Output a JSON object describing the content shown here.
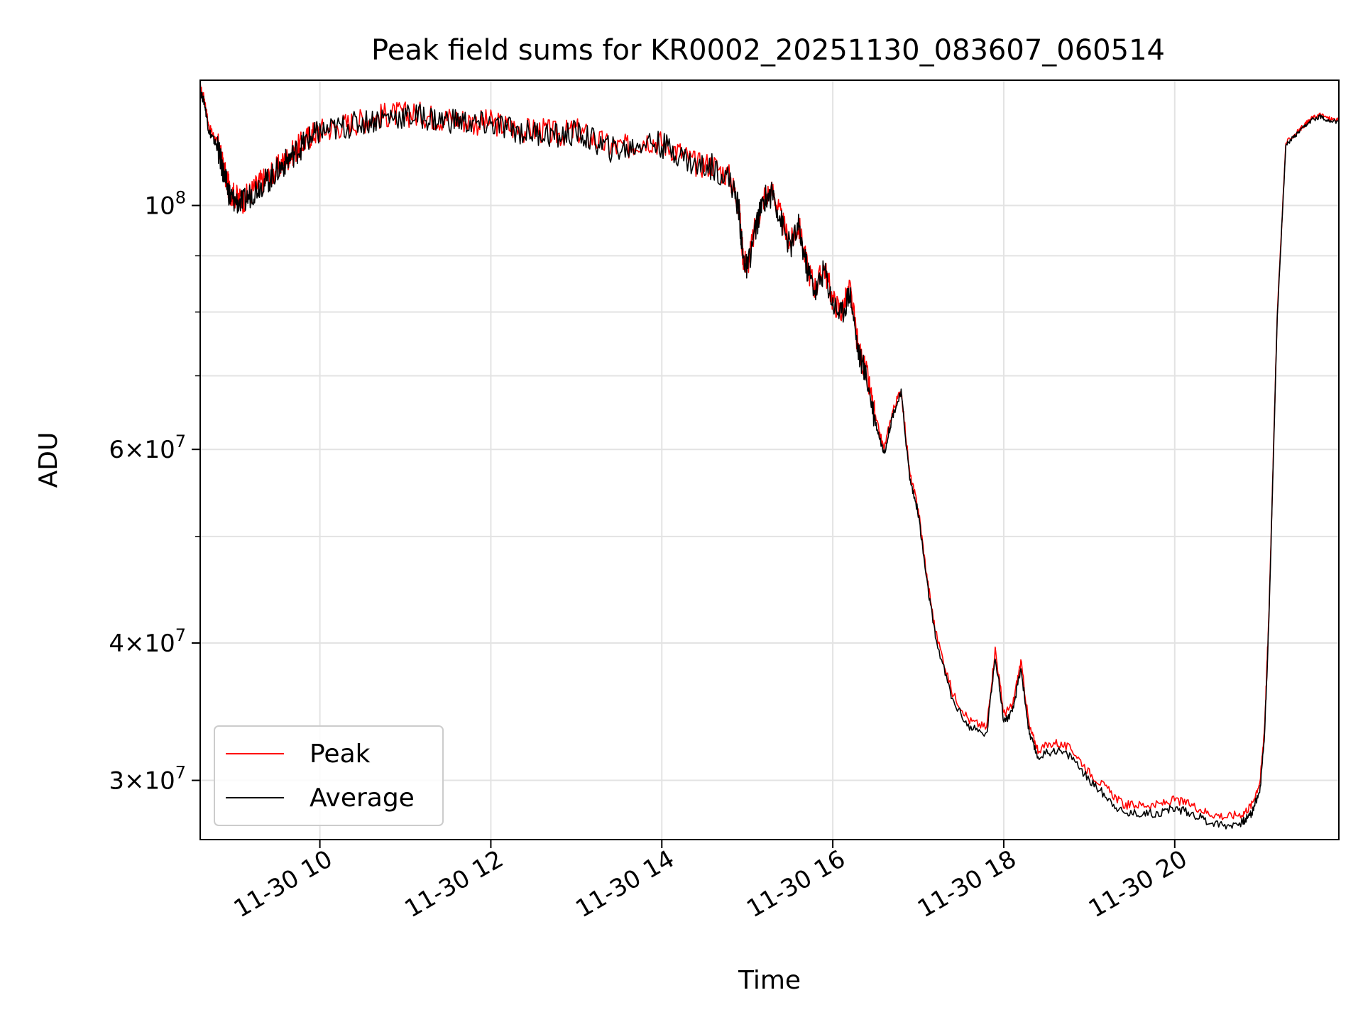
{
  "chart_data": {
    "type": "line",
    "title": "Peak field sums for KR0002_20251130_083607_060514",
    "xlabel": "Time",
    "ylabel": "ADU",
    "x_unit": "hours",
    "xlim": [
      8.6,
      21.92
    ],
    "ylim": [
      26500000,
      130000000
    ],
    "y_scale": "log",
    "grid": true,
    "legend_position": "lower-left",
    "x_ticks": [
      {
        "value": 10,
        "label": "11-30 10"
      },
      {
        "value": 12,
        "label": "11-30 12"
      },
      {
        "value": 14,
        "label": "11-30 14"
      },
      {
        "value": 16,
        "label": "11-30 16"
      },
      {
        "value": 18,
        "label": "11-30 18"
      },
      {
        "value": 20,
        "label": "11-30 20"
      }
    ],
    "y_major_ticks": [
      {
        "value": 30000000,
        "mantissa": "3",
        "exponent": "7"
      },
      {
        "value": 40000000,
        "mantissa": "4",
        "exponent": "7"
      },
      {
        "value": 60000000,
        "mantissa": "6",
        "exponent": "7"
      },
      {
        "value": 100000000,
        "mantissa": "",
        "exponent": "8"
      }
    ],
    "y_minor_ticks": [
      50000000,
      70000000,
      80000000,
      90000000
    ],
    "series": [
      {
        "name": "Peak",
        "color": "#ff0000",
        "x": [
          8.6,
          8.65,
          8.7,
          8.75,
          8.8,
          8.85,
          8.9,
          8.95,
          9.0,
          9.1,
          9.2,
          9.3,
          9.4,
          9.5,
          9.6,
          9.7,
          9.8,
          9.9,
          10.0,
          10.2,
          10.4,
          10.6,
          10.8,
          11.0,
          11.2,
          11.4,
          11.6,
          11.8,
          12.0,
          12.2,
          12.4,
          12.6,
          12.8,
          13.0,
          13.2,
          13.4,
          13.6,
          13.8,
          14.0,
          14.2,
          14.4,
          14.6,
          14.8,
          14.9,
          14.95,
          15.0,
          15.1,
          15.2,
          15.3,
          15.4,
          15.5,
          15.6,
          15.7,
          15.8,
          15.9,
          16.0,
          16.1,
          16.2,
          16.3,
          16.4,
          16.5,
          16.6,
          16.7,
          16.8,
          16.9,
          17.0,
          17.1,
          17.2,
          17.4,
          17.6,
          17.8,
          17.9,
          18.0,
          18.1,
          18.2,
          18.3,
          18.4,
          18.6,
          18.8,
          19.0,
          19.2,
          19.4,
          19.6,
          19.8,
          20.0,
          20.2,
          20.4,
          20.6,
          20.8,
          20.9,
          21.0,
          21.05,
          21.1,
          21.15,
          21.2,
          21.3,
          21.4,
          21.5,
          21.6,
          21.7,
          21.8,
          21.92
        ],
        "values": [
          128000000,
          125000000,
          118000000,
          116000000,
          114000000,
          110000000,
          106000000,
          103000000,
          102000000,
          101000000,
          103000000,
          105000000,
          106000000,
          108000000,
          110000000,
          112000000,
          114000000,
          116000000,
          117000000,
          118000000,
          119000000,
          120000000,
          121000000,
          121000000,
          121000000,
          120000000,
          120000000,
          119000000,
          119000000,
          118000000,
          117000000,
          117000000,
          116000000,
          117000000,
          115000000,
          113000000,
          113000000,
          115000000,
          114000000,
          112000000,
          109000000,
          109000000,
          106000000,
          100000000,
          90000000,
          88000000,
          96000000,
          102000000,
          103000000,
          97000000,
          92000000,
          96000000,
          88000000,
          84000000,
          88000000,
          82000000,
          80000000,
          84000000,
          74000000,
          70000000,
          64000000,
          60000000,
          65000000,
          68000000,
          57000000,
          53000000,
          46000000,
          41000000,
          36000000,
          34000000,
          33500000,
          39500000,
          34500000,
          35000000,
          38500000,
          33500000,
          32000000,
          32500000,
          32000000,
          30500000,
          29500000,
          28500000,
          28500000,
          28500000,
          28800000,
          28500000,
          28000000,
          27800000,
          28000000,
          28500000,
          30000000,
          33500000,
          42000000,
          58000000,
          80000000,
          114000000,
          116000000,
          118000000,
          120000000,
          121000000,
          120000000,
          119500000
        ]
      },
      {
        "name": "Average",
        "color": "#000000",
        "x": [
          8.6,
          8.65,
          8.7,
          8.75,
          8.8,
          8.85,
          8.9,
          8.95,
          9.0,
          9.1,
          9.2,
          9.3,
          9.4,
          9.5,
          9.6,
          9.7,
          9.8,
          9.9,
          10.0,
          10.2,
          10.4,
          10.6,
          10.8,
          11.0,
          11.2,
          11.4,
          11.6,
          11.8,
          12.0,
          12.2,
          12.4,
          12.6,
          12.8,
          13.0,
          13.2,
          13.4,
          13.6,
          13.8,
          14.0,
          14.2,
          14.4,
          14.6,
          14.8,
          14.9,
          14.95,
          15.0,
          15.1,
          15.2,
          15.3,
          15.4,
          15.5,
          15.6,
          15.7,
          15.8,
          15.9,
          16.0,
          16.1,
          16.2,
          16.3,
          16.4,
          16.5,
          16.6,
          16.7,
          16.8,
          16.9,
          17.0,
          17.1,
          17.2,
          17.4,
          17.6,
          17.8,
          17.9,
          18.0,
          18.1,
          18.2,
          18.3,
          18.4,
          18.6,
          18.8,
          19.0,
          19.2,
          19.4,
          19.6,
          19.8,
          20.0,
          20.2,
          20.4,
          20.6,
          20.8,
          20.9,
          21.0,
          21.05,
          21.1,
          21.15,
          21.2,
          21.3,
          21.4,
          21.5,
          21.6,
          21.7,
          21.8,
          21.92
        ],
        "values": [
          127000000,
          124000000,
          117000000,
          115000000,
          113000000,
          109000000,
          105000000,
          102000000,
          101000000,
          100500000,
          102500000,
          104500000,
          105500000,
          107500000,
          109500000,
          111500000,
          113500000,
          115500000,
          116500000,
          117500000,
          118500000,
          119500000,
          120500000,
          120500000,
          120500000,
          119500000,
          119500000,
          118500000,
          118500000,
          117500000,
          116500000,
          116500000,
          115500000,
          116500000,
          114500000,
          112500000,
          112500000,
          114500000,
          113500000,
          111500000,
          108500000,
          108500000,
          105500000,
          99500000,
          89500000,
          87500000,
          95500000,
          101500000,
          102500000,
          96500000,
          91500000,
          95500000,
          87500000,
          83500000,
          87500000,
          81500000,
          79500000,
          83500000,
          73500000,
          69500000,
          63500000,
          59500000,
          64500000,
          67500000,
          56500000,
          52500000,
          45500000,
          40500000,
          35500000,
          33500000,
          33000000,
          39000000,
          34000000,
          34500000,
          38000000,
          33000000,
          31500000,
          32000000,
          31500000,
          30000000,
          29000000,
          28000000,
          28000000,
          28000000,
          28300000,
          28000000,
          27500000,
          27300000,
          27500000,
          28000000,
          29500000,
          33000000,
          41500000,
          57500000,
          79500000,
          113500000,
          115500000,
          117500000,
          119500000,
          120500000,
          119500000,
          119000000
        ]
      }
    ]
  }
}
